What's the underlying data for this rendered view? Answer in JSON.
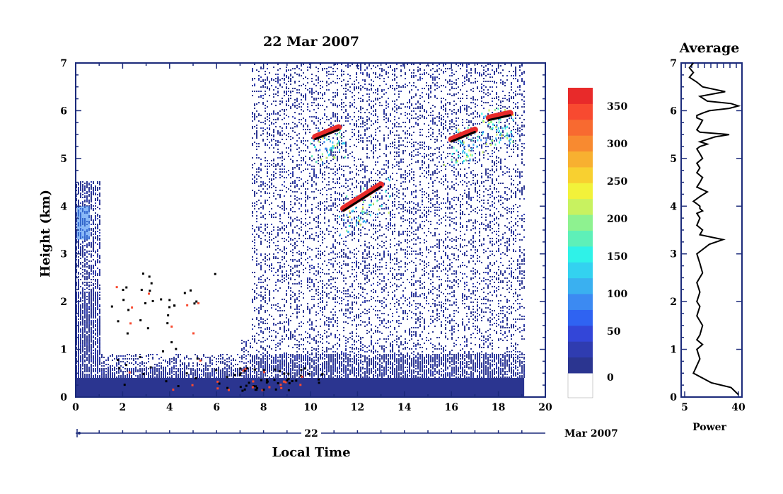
{
  "chart_data": [
    {
      "type": "heatmap",
      "title": "22 Mar 2007",
      "xlabel": "Local Time",
      "ylabel": "Height (km)",
      "xlim": [
        0,
        20
      ],
      "ylim": [
        0,
        7
      ],
      "x_ticks": [
        "0",
        "2",
        "4",
        "6",
        "8",
        "10",
        "12",
        "14",
        "16",
        "18",
        "20"
      ],
      "y_ticks": [
        "0",
        "1",
        "2",
        "3",
        "4",
        "5",
        "6",
        "7"
      ],
      "date_axis": {
        "day_label": "22",
        "month_label": "Mar 2007"
      },
      "data_extent_hours": [
        0,
        19.1
      ],
      "colorbar": {
        "ticks": [
          "0",
          "50",
          "100",
          "150",
          "200",
          "250",
          "300",
          "350"
        ],
        "range": [
          0,
          380
        ],
        "colors": [
          "#2b3590",
          "#2f3cb0",
          "#3346d8",
          "#2f63f2",
          "#3c8af2",
          "#3ab0f0",
          "#33d2f0",
          "#2ff2e8",
          "#5ef0b8",
          "#8ef290",
          "#c8f260",
          "#f2f23a",
          "#f8d030",
          "#f8b030",
          "#f88a30",
          "#f86a30",
          "#f84a30",
          "#e82a2a"
        ]
      },
      "features": [
        {
          "name": "boundary-layer",
          "x": [
            0,
            19.1
          ],
          "height_km": [
            0,
            0.9
          ],
          "level": 20
        },
        {
          "name": "low-cloud-0",
          "x": [
            0,
            0.9
          ],
          "height_km": [
            2.2,
            4.5
          ],
          "level": 20
        },
        {
          "name": "cloud-layer-a",
          "x": [
            10.2,
            11.2
          ],
          "height_km": [
            5.45,
            5.65
          ],
          "level": 370
        },
        {
          "name": "cloud-layer-b",
          "x": [
            11.4,
            13.0
          ],
          "height_km": [
            3.95,
            4.45
          ],
          "level": 370
        },
        {
          "name": "cloud-layer-c",
          "x": [
            16.0,
            17.0
          ],
          "height_km": [
            5.4,
            5.6
          ],
          "level": 370
        },
        {
          "name": "cloud-layer-d",
          "x": [
            17.6,
            18.5
          ],
          "height_km": [
            5.85,
            5.95
          ],
          "level": 360
        }
      ]
    },
    {
      "type": "line",
      "title": "Average",
      "xlabel": "Power",
      "ylabel": "",
      "x_ticks": [
        "5",
        "40"
      ],
      "xlim": [
        5,
        40
      ],
      "xscale": "log",
      "ylim": [
        0,
        7
      ],
      "y_ticks": [
        "0",
        "1",
        "2",
        "3",
        "4",
        "5",
        "6",
        "7"
      ],
      "series": [
        {
          "x": [
            40,
            30,
            14,
            7,
            9,
            8,
            10,
            8,
            9,
            10,
            8,
            9,
            8,
            9,
            8,
            10,
            9,
            8,
            13,
            22,
            9,
            10,
            8,
            9,
            8,
            10,
            9,
            9,
            8,
            7,
            9,
            12,
            8,
            9,
            10,
            8,
            9,
            8,
            10,
            9,
            8,
            9,
            12,
            9,
            16,
            28,
            9,
            8,
            9,
            10,
            8,
            8,
            10,
            13,
            28,
            40,
            30,
            12,
            9,
            24,
            10,
            8,
            6,
            7,
            6,
            7
          ],
          "y": [
            0.05,
            0.2,
            0.3,
            0.5,
            0.8,
            1.0,
            1.1,
            1.2,
            1.3,
            1.5,
            1.7,
            1.9,
            2.0,
            2.2,
            2.4,
            2.6,
            2.8,
            3.0,
            3.2,
            3.3,
            3.4,
            3.5,
            3.6,
            3.75,
            3.85,
            3.9,
            3.95,
            4.0,
            4.05,
            4.1,
            4.2,
            4.3,
            4.4,
            4.5,
            4.6,
            4.7,
            4.8,
            4.9,
            5.0,
            5.1,
            5.2,
            5.25,
            5.3,
            5.35,
            5.45,
            5.5,
            5.55,
            5.6,
            5.7,
            5.8,
            5.85,
            5.9,
            5.95,
            6.0,
            6.05,
            6.1,
            6.15,
            6.2,
            6.3,
            6.4,
            6.5,
            6.6,
            6.7,
            6.8,
            6.9,
            7.0
          ]
        }
      ]
    }
  ]
}
